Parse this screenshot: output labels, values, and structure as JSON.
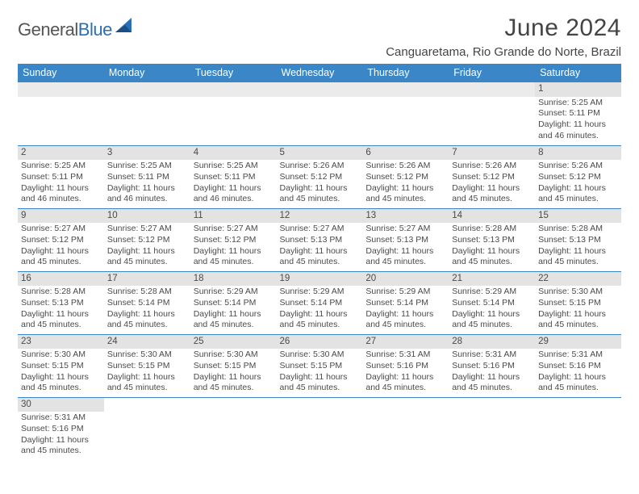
{
  "brand": {
    "part1": "General",
    "part2": "Blue",
    "color1": "#555555",
    "color2": "#2a6fb5"
  },
  "title": "June 2024",
  "location": "Canguaretama, Rio Grande do Norte, Brazil",
  "header_bg": "#3b86c7",
  "daynum_bg": "#e3e3e3",
  "border_color": "#3b86c7",
  "text_color": "#4a4a4a",
  "days_of_week": [
    "Sunday",
    "Monday",
    "Tuesday",
    "Wednesday",
    "Thursday",
    "Friday",
    "Saturday"
  ],
  "weeks": [
    [
      null,
      null,
      null,
      null,
      null,
      null,
      {
        "n": "1",
        "sunrise": "5:25 AM",
        "sunset": "5:11 PM",
        "daylight": "11 hours and 46 minutes."
      }
    ],
    [
      {
        "n": "2",
        "sunrise": "5:25 AM",
        "sunset": "5:11 PM",
        "daylight": "11 hours and 46 minutes."
      },
      {
        "n": "3",
        "sunrise": "5:25 AM",
        "sunset": "5:11 PM",
        "daylight": "11 hours and 46 minutes."
      },
      {
        "n": "4",
        "sunrise": "5:25 AM",
        "sunset": "5:11 PM",
        "daylight": "11 hours and 46 minutes."
      },
      {
        "n": "5",
        "sunrise": "5:26 AM",
        "sunset": "5:12 PM",
        "daylight": "11 hours and 45 minutes."
      },
      {
        "n": "6",
        "sunrise": "5:26 AM",
        "sunset": "5:12 PM",
        "daylight": "11 hours and 45 minutes."
      },
      {
        "n": "7",
        "sunrise": "5:26 AM",
        "sunset": "5:12 PM",
        "daylight": "11 hours and 45 minutes."
      },
      {
        "n": "8",
        "sunrise": "5:26 AM",
        "sunset": "5:12 PM",
        "daylight": "11 hours and 45 minutes."
      }
    ],
    [
      {
        "n": "9",
        "sunrise": "5:27 AM",
        "sunset": "5:12 PM",
        "daylight": "11 hours and 45 minutes."
      },
      {
        "n": "10",
        "sunrise": "5:27 AM",
        "sunset": "5:12 PM",
        "daylight": "11 hours and 45 minutes."
      },
      {
        "n": "11",
        "sunrise": "5:27 AM",
        "sunset": "5:12 PM",
        "daylight": "11 hours and 45 minutes."
      },
      {
        "n": "12",
        "sunrise": "5:27 AM",
        "sunset": "5:13 PM",
        "daylight": "11 hours and 45 minutes."
      },
      {
        "n": "13",
        "sunrise": "5:27 AM",
        "sunset": "5:13 PM",
        "daylight": "11 hours and 45 minutes."
      },
      {
        "n": "14",
        "sunrise": "5:28 AM",
        "sunset": "5:13 PM",
        "daylight": "11 hours and 45 minutes."
      },
      {
        "n": "15",
        "sunrise": "5:28 AM",
        "sunset": "5:13 PM",
        "daylight": "11 hours and 45 minutes."
      }
    ],
    [
      {
        "n": "16",
        "sunrise": "5:28 AM",
        "sunset": "5:13 PM",
        "daylight": "11 hours and 45 minutes."
      },
      {
        "n": "17",
        "sunrise": "5:28 AM",
        "sunset": "5:14 PM",
        "daylight": "11 hours and 45 minutes."
      },
      {
        "n": "18",
        "sunrise": "5:29 AM",
        "sunset": "5:14 PM",
        "daylight": "11 hours and 45 minutes."
      },
      {
        "n": "19",
        "sunrise": "5:29 AM",
        "sunset": "5:14 PM",
        "daylight": "11 hours and 45 minutes."
      },
      {
        "n": "20",
        "sunrise": "5:29 AM",
        "sunset": "5:14 PM",
        "daylight": "11 hours and 45 minutes."
      },
      {
        "n": "21",
        "sunrise": "5:29 AM",
        "sunset": "5:14 PM",
        "daylight": "11 hours and 45 minutes."
      },
      {
        "n": "22",
        "sunrise": "5:30 AM",
        "sunset": "5:15 PM",
        "daylight": "11 hours and 45 minutes."
      }
    ],
    [
      {
        "n": "23",
        "sunrise": "5:30 AM",
        "sunset": "5:15 PM",
        "daylight": "11 hours and 45 minutes."
      },
      {
        "n": "24",
        "sunrise": "5:30 AM",
        "sunset": "5:15 PM",
        "daylight": "11 hours and 45 minutes."
      },
      {
        "n": "25",
        "sunrise": "5:30 AM",
        "sunset": "5:15 PM",
        "daylight": "11 hours and 45 minutes."
      },
      {
        "n": "26",
        "sunrise": "5:30 AM",
        "sunset": "5:15 PM",
        "daylight": "11 hours and 45 minutes."
      },
      {
        "n": "27",
        "sunrise": "5:31 AM",
        "sunset": "5:16 PM",
        "daylight": "11 hours and 45 minutes."
      },
      {
        "n": "28",
        "sunrise": "5:31 AM",
        "sunset": "5:16 PM",
        "daylight": "11 hours and 45 minutes."
      },
      {
        "n": "29",
        "sunrise": "5:31 AM",
        "sunset": "5:16 PM",
        "daylight": "11 hours and 45 minutes."
      }
    ],
    [
      {
        "n": "30",
        "sunrise": "5:31 AM",
        "sunset": "5:16 PM",
        "daylight": "11 hours and 45 minutes."
      },
      null,
      null,
      null,
      null,
      null,
      null
    ]
  ],
  "labels": {
    "sunrise": "Sunrise:",
    "sunset": "Sunset:",
    "daylight": "Daylight:"
  }
}
